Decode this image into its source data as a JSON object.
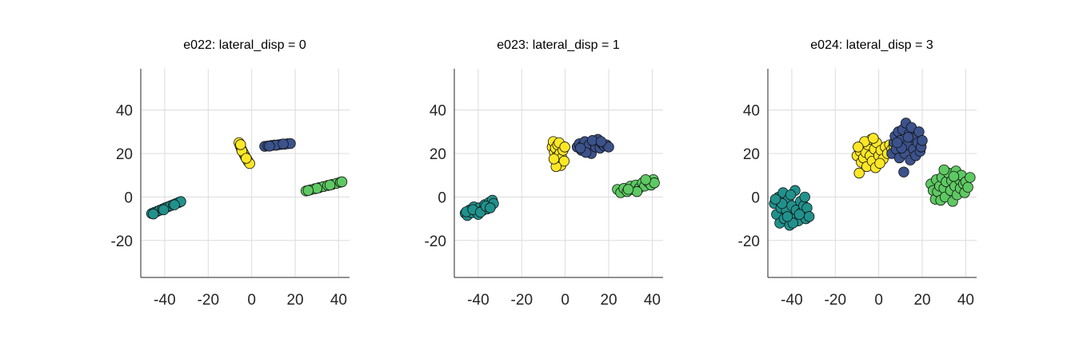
{
  "chart_data": [
    {
      "type": "scatter",
      "title": "e022: lateral_disp = 0",
      "xticks": [
        -40,
        -20,
        0,
        20,
        40
      ],
      "yticks": [
        -20,
        0,
        20,
        40
      ],
      "xlim": [
        -51,
        45
      ],
      "ylim": [
        -37,
        59
      ],
      "grid": true,
      "legend": "none",
      "clusters": [
        {
          "color": "#21918c",
          "points": [
            [
              -46,
              -7.6
            ],
            [
              -44.8,
              -7.1
            ],
            [
              -43.5,
              -6.6
            ],
            [
              -42.3,
              -6.1
            ],
            [
              -41,
              -5.6
            ],
            [
              -39.8,
              -5
            ],
            [
              -38.5,
              -4.5
            ],
            [
              -37.3,
              -4
            ],
            [
              -36,
              -3.5
            ],
            [
              -34.8,
              -3
            ],
            [
              -33.5,
              -2.5
            ],
            [
              -32.6,
              -2.1
            ],
            [
              -45.2,
              -7.8
            ],
            [
              -40.5,
              -5.9
            ],
            [
              -35.5,
              -3.6
            ]
          ]
        },
        {
          "color": "#fde725",
          "points": [
            [
              -5.8,
              25
            ],
            [
              -5.3,
              23.5
            ],
            [
              -4.7,
              22
            ],
            [
              -4.1,
              20.8
            ],
            [
              -3.4,
              19.5
            ],
            [
              -2.8,
              18.3
            ],
            [
              -2.1,
              17.2
            ],
            [
              -1.5,
              16.2
            ],
            [
              -0.9,
              15.4
            ],
            [
              -4.5,
              21.2
            ],
            [
              -2.5,
              17.8
            ],
            [
              -5.1,
              24.1
            ]
          ]
        },
        {
          "color": "#3b528b",
          "points": [
            [
              6,
              23.3
            ],
            [
              7.5,
              23.5
            ],
            [
              9,
              23.7
            ],
            [
              10.5,
              23.9
            ],
            [
              12,
              24
            ],
            [
              13.5,
              24.2
            ],
            [
              15,
              24.3
            ],
            [
              16.5,
              24.5
            ],
            [
              17.8,
              24.6
            ],
            [
              11,
              23.8
            ],
            [
              14.5,
              24.4
            ],
            [
              8.2,
              23.4
            ]
          ]
        },
        {
          "color": "#5ec962",
          "points": [
            [
              25,
              2.8
            ],
            [
              27,
              3.3
            ],
            [
              29,
              3.8
            ],
            [
              31,
              4.3
            ],
            [
              33,
              4.8
            ],
            [
              35,
              5.3
            ],
            [
              37,
              5.8
            ],
            [
              39,
              6.3
            ],
            [
              40.8,
              6.8
            ],
            [
              41.5,
              7
            ],
            [
              30,
              4
            ],
            [
              36,
              5.5
            ],
            [
              26,
              3
            ]
          ]
        }
      ]
    },
    {
      "type": "scatter",
      "title": "e023: lateral_disp = 1",
      "xticks": [
        -40,
        -20,
        0,
        20,
        40
      ],
      "yticks": [
        -20,
        0,
        20,
        40
      ],
      "xlim": [
        -51,
        45
      ],
      "ylim": [
        -37,
        59
      ],
      "grid": true,
      "legend": "none",
      "clusters": [
        {
          "color": "#21918c",
          "points": [
            [
              -46,
              -7.5
            ],
            [
              -45,
              -8.5
            ],
            [
              -44,
              -6
            ],
            [
              -43,
              -7.2
            ],
            [
              -42,
              -4.5
            ],
            [
              -41,
              -6.5
            ],
            [
              -40,
              -8
            ],
            [
              -39.5,
              -5
            ],
            [
              -38,
              -6.2
            ],
            [
              -37,
              -3.5
            ],
            [
              -36,
              -5.5
            ],
            [
              -35,
              -2.5
            ],
            [
              -34,
              -4
            ],
            [
              -33.5,
              -1.5
            ],
            [
              -33,
              -3
            ],
            [
              -45.5,
              -6.8
            ],
            [
              -42.5,
              -5.8
            ],
            [
              -39,
              -7
            ],
            [
              -36.5,
              -4.2
            ],
            [
              -34.5,
              -5
            ]
          ]
        },
        {
          "color": "#fde725",
          "points": [
            [
              -6,
              23
            ],
            [
              -5.5,
              25.5
            ],
            [
              -5,
              20.5
            ],
            [
              -4.5,
              22.5
            ],
            [
              -4,
              18.5
            ],
            [
              -3.5,
              24
            ],
            [
              -3,
              16.5
            ],
            [
              -2.5,
              20
            ],
            [
              -2,
              14.5
            ],
            [
              -1.5,
              18
            ],
            [
              -1,
              21.5
            ],
            [
              -0.5,
              16.5
            ],
            [
              -4.2,
              14
            ],
            [
              -2.8,
              25
            ],
            [
              -0.2,
              23
            ],
            [
              -5.2,
              17.5
            ]
          ]
        },
        {
          "color": "#3b528b",
          "points": [
            [
              5.5,
              23
            ],
            [
              6.5,
              24.5
            ],
            [
              7.5,
              21.5
            ],
            [
              8,
              23.5
            ],
            [
              9,
              25.5
            ],
            [
              10,
              22
            ],
            [
              11,
              24
            ],
            [
              12,
              20
            ],
            [
              13,
              25.5
            ],
            [
              14,
              23
            ],
            [
              15,
              26.5
            ],
            [
              16,
              22.5
            ],
            [
              17,
              24.5
            ],
            [
              18,
              23.5
            ],
            [
              19,
              24
            ],
            [
              20,
              23
            ],
            [
              9.5,
              20.5
            ],
            [
              12.5,
              26
            ],
            [
              16.5,
              25.5
            ],
            [
              7,
              22.5
            ]
          ]
        },
        {
          "color": "#5ec962",
          "points": [
            [
              24,
              3.5
            ],
            [
              25.5,
              2
            ],
            [
              27,
              4
            ],
            [
              28.5,
              2.5
            ],
            [
              30,
              5
            ],
            [
              31,
              3.5
            ],
            [
              32.5,
              5.5
            ],
            [
              34,
              4
            ],
            [
              35.5,
              6.5
            ],
            [
              36.5,
              5
            ],
            [
              38,
              7
            ],
            [
              39.5,
              5.5
            ],
            [
              40.5,
              8
            ],
            [
              41,
              6.5
            ],
            [
              33,
              2.5
            ],
            [
              37,
              8
            ],
            [
              29,
              3.5
            ]
          ]
        }
      ]
    },
    {
      "type": "scatter",
      "title": "e024: lateral_disp = 3",
      "xticks": [
        -40,
        -20,
        0,
        20,
        40
      ],
      "yticks": [
        -20,
        0,
        20,
        40
      ],
      "xlim": [
        -51,
        45
      ],
      "ylim": [
        -37,
        59
      ],
      "grid": true,
      "legend": "none",
      "clusters": [
        {
          "color": "#21918c",
          "points": [
            [
              -48,
              -3
            ],
            [
              -47,
              -8
            ],
            [
              -46,
              0
            ],
            [
              -45.5,
              -12
            ],
            [
              -45,
              -5
            ],
            [
              -44,
              2
            ],
            [
              -43.5,
              -10
            ],
            [
              -42.5,
              -6
            ],
            [
              -41.5,
              -1
            ],
            [
              -41,
              -13
            ],
            [
              -40,
              -4
            ],
            [
              -39,
              -9
            ],
            [
              -38.5,
              3
            ],
            [
              -38,
              -6
            ],
            [
              -37,
              -11
            ],
            [
              -36,
              -2
            ],
            [
              -35.5,
              -7
            ],
            [
              -34.5,
              -4
            ],
            [
              -34,
              0
            ],
            [
              -33.5,
              -10
            ],
            [
              -33,
              -5
            ],
            [
              -32,
              -9
            ],
            [
              -44.5,
              -3
            ],
            [
              -40.5,
              1
            ],
            [
              -36.5,
              -8
            ],
            [
              -47.5,
              -1
            ],
            [
              -39.5,
              -12
            ],
            [
              -42,
              -9
            ]
          ]
        },
        {
          "color": "#fde725",
          "points": [
            [
              -10,
              19
            ],
            [
              -9,
              11
            ],
            [
              -8.5,
              21
            ],
            [
              -8,
              16
            ],
            [
              -7.5,
              23
            ],
            [
              -7,
              18
            ],
            [
              -6,
              20.5
            ],
            [
              -5.5,
              14
            ],
            [
              -5,
              24
            ],
            [
              -4,
              19
            ],
            [
              -3.5,
              26.5
            ],
            [
              -3,
              16.5
            ],
            [
              -2,
              22
            ],
            [
              -1.5,
              13.5
            ],
            [
              -1,
              25
            ],
            [
              0,
              19
            ],
            [
              1,
              21.5
            ],
            [
              2,
              17.5
            ],
            [
              3,
              23
            ],
            [
              4,
              20
            ],
            [
              5,
              24
            ],
            [
              6,
              22
            ],
            [
              7,
              23.5
            ],
            [
              -6.5,
              25.5
            ],
            [
              -2.5,
              27
            ],
            [
              0.5,
              15.5
            ],
            [
              -9.5,
              23
            ]
          ]
        },
        {
          "color": "#3b528b",
          "points": [
            [
              6,
              20
            ],
            [
              7,
              25
            ],
            [
              7.5,
              28
            ],
            [
              8,
              22
            ],
            [
              9,
              30
            ],
            [
              9.5,
              18
            ],
            [
              10,
              26
            ],
            [
              11,
              31
            ],
            [
              11.5,
              11.5
            ],
            [
              12,
              20
            ],
            [
              12.5,
              34
            ],
            [
              13,
              24
            ],
            [
              14,
              29
            ],
            [
              14.5,
              17
            ],
            [
              15,
              32
            ],
            [
              16,
              22
            ],
            [
              16.5,
              27
            ],
            [
              17,
              19
            ],
            [
              18,
              25
            ],
            [
              18.5,
              30
            ],
            [
              19,
              21
            ],
            [
              19.5,
              23
            ],
            [
              20,
              26
            ],
            [
              10.5,
              22.5
            ],
            [
              13.5,
              27.5
            ],
            [
              8.5,
              25
            ]
          ]
        },
        {
          "color": "#5ec962",
          "points": [
            [
              24,
              6
            ],
            [
              25,
              3
            ],
            [
              26,
              -1
            ],
            [
              26.5,
              8
            ],
            [
              27,
              2.5
            ],
            [
              28,
              5
            ],
            [
              28.5,
              -1.5
            ],
            [
              29,
              9
            ],
            [
              30,
              4
            ],
            [
              30.5,
              0
            ],
            [
              31,
              7
            ],
            [
              32,
              11
            ],
            [
              33,
              3
            ],
            [
              33.5,
              7.5
            ],
            [
              34,
              -2
            ],
            [
              35,
              5
            ],
            [
              35.5,
              12
            ],
            [
              36,
              1
            ],
            [
              37,
              8
            ],
            [
              37.5,
              4
            ],
            [
              38,
              10
            ],
            [
              39,
              6
            ],
            [
              39.5,
              2
            ],
            [
              40,
              7
            ],
            [
              41,
              4.5
            ],
            [
              42,
              9
            ],
            [
              30,
              12.5
            ],
            [
              34.5,
              9.5
            ]
          ]
        }
      ]
    }
  ]
}
